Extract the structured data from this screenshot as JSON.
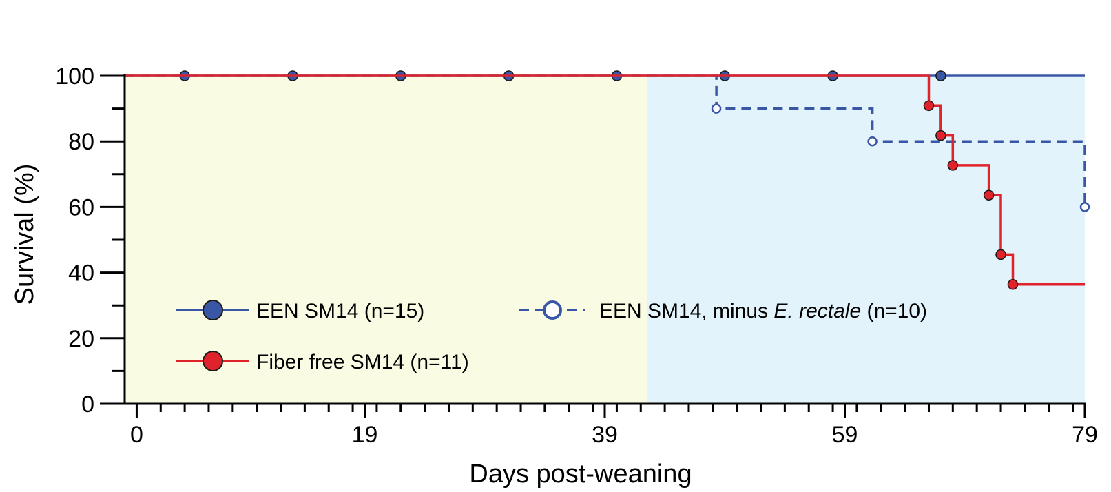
{
  "chart_data": {
    "type": "line",
    "subtype": "kaplan-meier step survival",
    "xlabel": "Days post-weaning",
    "ylabel": "Survival (%)",
    "xlim": [
      -1,
      79
    ],
    "ylim": [
      0,
      100
    ],
    "x_ticks": [
      0,
      19,
      39,
      59,
      79
    ],
    "y_ticks": [
      0,
      20,
      40,
      60,
      80,
      100
    ],
    "grid": false,
    "background_bands": [
      {
        "x_from": -1,
        "x_to": 42.5,
        "color": "#fafbe3"
      },
      {
        "x_from": 42.5,
        "x_to": 79,
        "color": "#e2f3fb"
      }
    ],
    "legend": {
      "placement": "lower-left",
      "entries": [
        {
          "text": "EEN SM14 (n=15)"
        },
        {
          "text_parts": [
            "EEN SM14, minus ",
            "E. rectale",
            " (n=10)"
          ]
        },
        {
          "text": "Fiber free SM14 (n=11)"
        }
      ]
    },
    "series": [
      {
        "name": "EEN SM14 (n=15)",
        "color": "#3a57a7",
        "line_style": "solid",
        "marker": "filled-circle",
        "steps": [
          [
            -1,
            100
          ],
          [
            79,
            100
          ]
        ],
        "markers": [
          [
            4,
            100
          ],
          [
            13,
            100
          ],
          [
            22,
            100
          ],
          [
            31,
            100
          ],
          [
            40,
            100
          ],
          [
            49,
            100
          ],
          [
            58,
            100
          ],
          [
            67,
            100
          ]
        ]
      },
      {
        "name": "EEN SM14, minus E. rectale (n=10)",
        "color": "#3a57a7",
        "line_style": "dashed",
        "marker": "open-circle",
        "steps": [
          [
            -1,
            100
          ],
          [
            48.3,
            100
          ],
          [
            48.3,
            90
          ],
          [
            61.3,
            90
          ],
          [
            61.3,
            80
          ],
          [
            79,
            80
          ],
          [
            79,
            60
          ]
        ],
        "markers": [
          [
            48.3,
            90
          ],
          [
            61.3,
            80
          ],
          [
            79,
            60
          ]
        ]
      },
      {
        "name": "Fiber free SM14 (n=11)",
        "color": "#e0222b",
        "line_style": "solid",
        "marker": "filled-circle",
        "steps": [
          [
            -1,
            100
          ],
          [
            66,
            100
          ],
          [
            66,
            90.9
          ],
          [
            67,
            90.9
          ],
          [
            67,
            81.8
          ],
          [
            68,
            81.8
          ],
          [
            68,
            72.7
          ],
          [
            71,
            72.7
          ],
          [
            71,
            63.6
          ],
          [
            72,
            63.6
          ],
          [
            72,
            45.5
          ],
          [
            73,
            45.5
          ],
          [
            73,
            36.4
          ],
          [
            79,
            36.4
          ]
        ],
        "markers": [
          [
            66,
            90.9
          ],
          [
            67,
            81.8
          ],
          [
            68,
            72.7
          ],
          [
            71,
            63.6
          ],
          [
            72,
            45.5
          ],
          [
            73,
            36.4
          ]
        ]
      }
    ]
  }
}
